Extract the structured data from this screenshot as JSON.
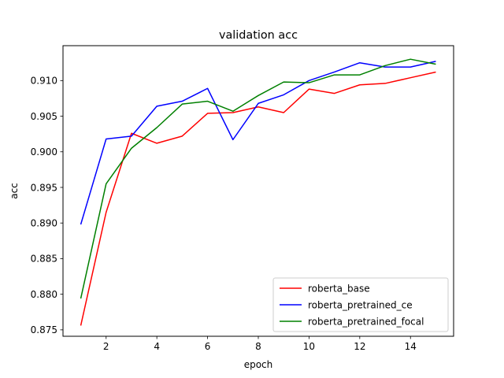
{
  "chart_data": {
    "type": "line",
    "title": "validation acc",
    "xlabel": "epoch",
    "ylabel": "acc",
    "xlim": [
      0.3,
      15.7
    ],
    "ylim": [
      0.8741,
      0.9149
    ],
    "xticks": [
      2,
      4,
      6,
      8,
      10,
      12,
      14
    ],
    "xtick_labels": [
      "2",
      "4",
      "6",
      "8",
      "10",
      "12",
      "14"
    ],
    "yticks": [
      0.875,
      0.88,
      0.885,
      0.89,
      0.895,
      0.9,
      0.905,
      0.91
    ],
    "ytick_labels": [
      "0.875",
      "0.880",
      "0.885",
      "0.890",
      "0.895",
      "0.900",
      "0.905",
      "0.910"
    ],
    "grid": false,
    "legend_position": "lower-right",
    "x": [
      1,
      2,
      3,
      4,
      5,
      6,
      7,
      8,
      9,
      10,
      11,
      12,
      13,
      14,
      15
    ],
    "series": [
      {
        "name": "roberta_base",
        "color": "#ff0000",
        "values": [
          0.8756,
          0.8915,
          0.9026,
          0.9012,
          0.9022,
          0.9054,
          0.9055,
          0.9063,
          0.9055,
          0.9088,
          0.9082,
          0.9094,
          0.9096,
          0.9104,
          0.9112
        ]
      },
      {
        "name": "roberta_pretrained_ce",
        "color": "#0000ff",
        "values": [
          0.8898,
          0.9018,
          0.9022,
          0.9064,
          0.9071,
          0.9089,
          0.9017,
          0.9068,
          0.908,
          0.91,
          0.9112,
          0.9125,
          0.9119,
          0.9119,
          0.9127
        ]
      },
      {
        "name": "roberta_pretrained_focal",
        "color": "#008000",
        "values": [
          0.8794,
          0.8955,
          0.9005,
          0.9034,
          0.9067,
          0.9071,
          0.9057,
          0.9079,
          0.9098,
          0.9097,
          0.9108,
          0.9108,
          0.9121,
          0.913,
          0.9123
        ]
      }
    ]
  }
}
